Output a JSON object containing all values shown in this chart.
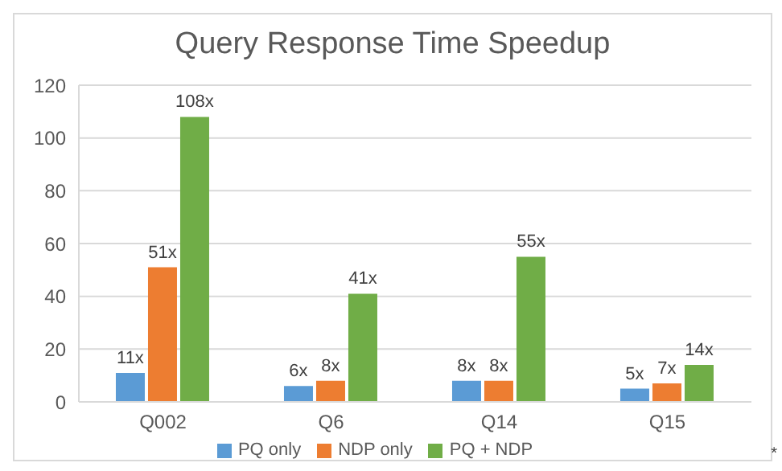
{
  "chart_data": {
    "type": "bar",
    "title": "Query Response Time Speedup",
    "categories": [
      "Q002",
      "Q6",
      "Q14",
      "Q15"
    ],
    "series": [
      {
        "name": "PQ only",
        "color": "#5b9bd5",
        "values": [
          11,
          6,
          8,
          5
        ],
        "value_labels": [
          "11x",
          "6x",
          "8x",
          "5x"
        ]
      },
      {
        "name": "NDP only",
        "color": "#ed7d31",
        "values": [
          51,
          8,
          8,
          7
        ],
        "value_labels": [
          "51x",
          "8x",
          "8x",
          "7x"
        ]
      },
      {
        "name": "PQ + NDP",
        "color": "#70ad47",
        "values": [
          108,
          41,
          55,
          14
        ],
        "value_labels": [
          "108x",
          "41x",
          "55x",
          "14x"
        ]
      }
    ],
    "ylim": [
      0,
      120
    ],
    "yticks": [
      0,
      20,
      40,
      60,
      80,
      100,
      120
    ],
    "grid": "y",
    "legend": "bottom",
    "annotations": [
      "*"
    ]
  }
}
